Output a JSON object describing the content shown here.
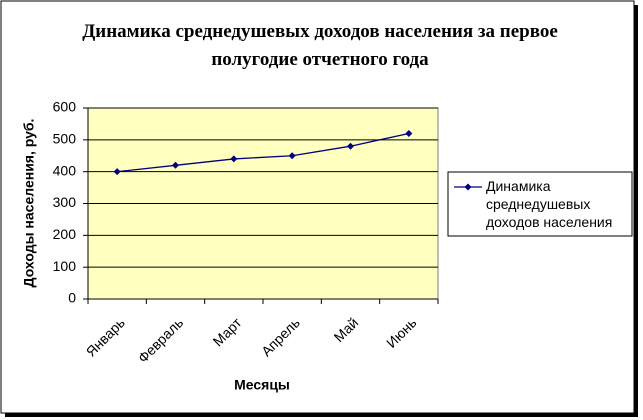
{
  "chart_data": {
    "type": "line",
    "title": "Динамика среднедушевых доходов населения за первое полугодие отчетного года",
    "x_label": "Месяцы",
    "y_label": "Доходы населения, руб.",
    "categories": [
      "Январь",
      "Февраль",
      "Март",
      "Апрель",
      "Май",
      "Июнь"
    ],
    "series": [
      {
        "name": "Динамика среднедушевых доходов населения",
        "color": "#000080",
        "values": [
          400,
          420,
          440,
          450,
          480,
          520
        ]
      }
    ],
    "ylim": [
      0,
      600
    ],
    "yticks": [
      0,
      100,
      200,
      300,
      400,
      500,
      600
    ],
    "grid": true,
    "legend": "right",
    "plot_background": "#ffffc0"
  }
}
